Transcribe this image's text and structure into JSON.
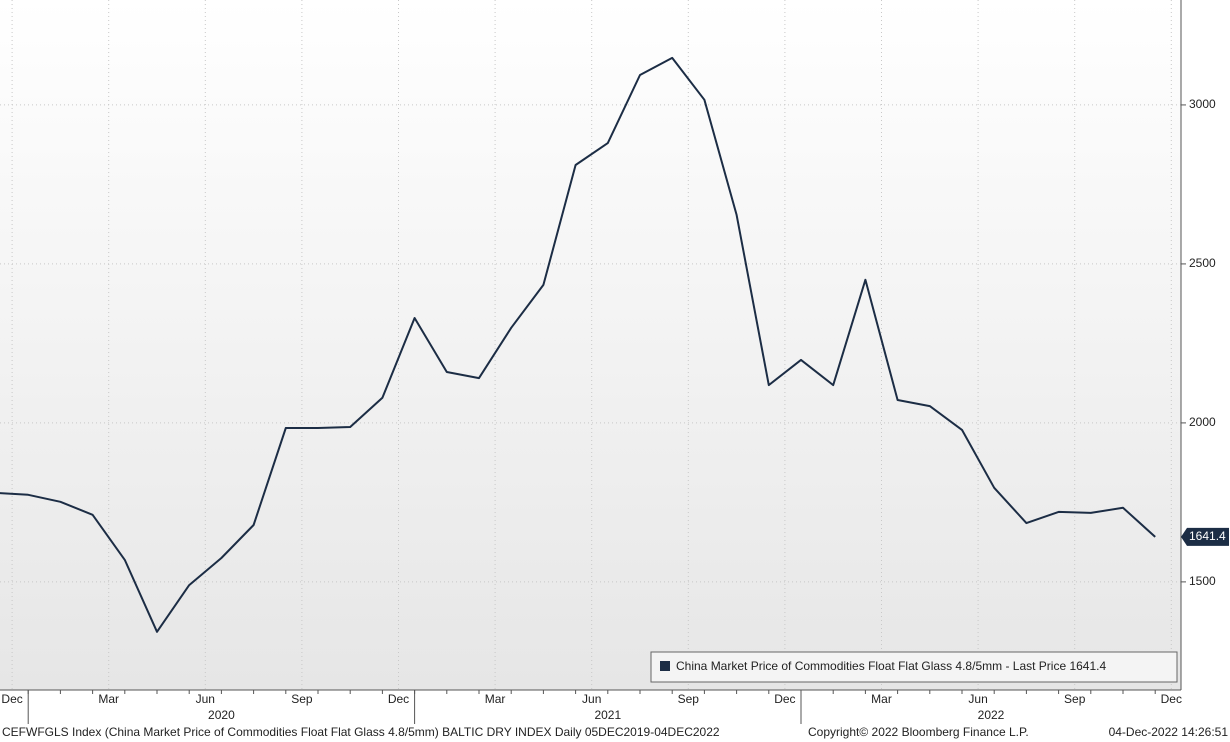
{
  "chart_data": {
    "type": "line",
    "x": [
      "2019-12",
      "2020-01",
      "2020-02",
      "2020-03",
      "2020-04",
      "2020-05",
      "2020-06",
      "2020-07",
      "2020-08",
      "2020-09",
      "2020-10",
      "2020-11",
      "2020-12",
      "2021-01",
      "2021-02",
      "2021-03",
      "2021-04",
      "2021-05",
      "2021-06",
      "2021-07",
      "2021-08",
      "2021-09",
      "2021-10",
      "2021-11",
      "2021-12",
      "2022-01",
      "2022-02",
      "2022-03",
      "2022-04",
      "2022-05",
      "2022-06",
      "2022-07",
      "2022-08",
      "2022-09",
      "2022-10",
      "2022-11",
      "2022-12"
    ],
    "series": [
      {
        "name": "China Market Price of Commodities Float Flat Glass 4.8/5mm - Last Price 1641.4",
        "color": "#1c2d45",
        "values": [
          1780,
          1774,
          1752,
          1711,
          1569,
          1343,
          1490,
          1575,
          1679,
          1984,
          1984,
          1987,
          2079,
          2330,
          2160,
          2141,
          2299,
          2434,
          2811,
          2880,
          3094,
          3148,
          3016,
          2654,
          2119,
          2198,
          2119,
          2450,
          2072,
          2053,
          1978,
          1796,
          1685,
          1720,
          1717,
          1733,
          1641.4
        ]
      }
    ],
    "last_price": 1641.4,
    "ylim": [
      1160,
      3330
    ],
    "yticks": [
      1500,
      2000,
      2500,
      3000
    ],
    "xticks": [
      {
        "value": "2019-12",
        "label": "Dec"
      },
      {
        "value": "2020-03",
        "label": "Mar"
      },
      {
        "value": "2020-06",
        "label": "Jun"
      },
      {
        "value": "2020-09",
        "label": "Sep"
      },
      {
        "value": "2020-12",
        "label": "Dec"
      },
      {
        "value": "2021-03",
        "label": "Mar"
      },
      {
        "value": "2021-06",
        "label": "Jun"
      },
      {
        "value": "2021-09",
        "label": "Sep"
      },
      {
        "value": "2021-12",
        "label": "Dec"
      },
      {
        "value": "2022-03",
        "label": "Mar"
      },
      {
        "value": "2022-06",
        "label": "Jun"
      },
      {
        "value": "2022-09",
        "label": "Sep"
      },
      {
        "value": "2022-12",
        "label": "Dec"
      }
    ],
    "year_labels": [
      "2020",
      "2021",
      "2022"
    ],
    "grid": true,
    "legend": "bottom-right",
    "footer": {
      "left": "CEFWFGLS Index (China Market Price of Commodities Float Flat Glass 4.8/5mm) BALTIC DRY INDEX  Daily 05DEC2019-04DEC2022",
      "center": "Copyright© 2022 Bloomberg Finance L.P.",
      "right": "04-Dec-2022 14:26:51"
    }
  }
}
